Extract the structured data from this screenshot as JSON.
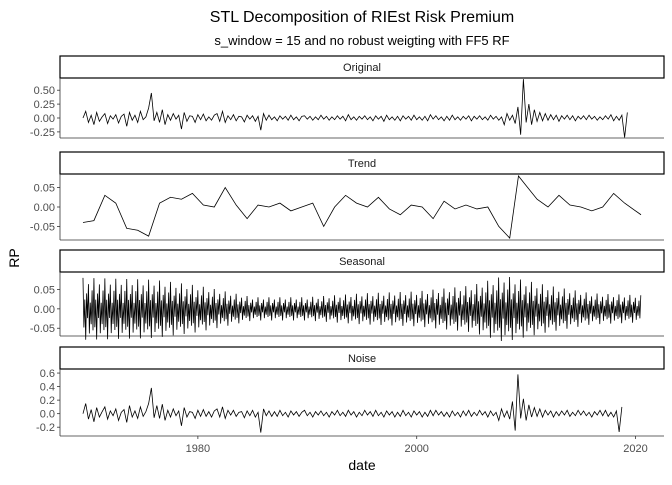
{
  "chart_data": {
    "type": "line",
    "title": "STL Decomposition of RIEst Risk Premium",
    "subtitle": "s_window = 15 and no robust weigting with FF5 RF",
    "xlabel": "date",
    "ylabel": "RP",
    "xlim": [
      1967.4,
      2022.6
    ],
    "x_ticks": [
      1980,
      2000,
      2020
    ],
    "x_tick_labels": [
      "1980",
      "2000",
      "2020"
    ],
    "grid": false,
    "x_start": 1969.5,
    "x_end": 2020.5,
    "panels": [
      {
        "name": "Original",
        "ylim": [
          -0.36,
          0.72
        ],
        "y_ticks": [
          -0.25,
          0.0,
          0.25,
          0.5
        ],
        "y_tick_labels": [
          "-0.25",
          "0.00",
          "0.25",
          "0.50"
        ],
        "sample_interval_years": 0.25,
        "values": [
          0.0,
          0.12,
          -0.08,
          0.05,
          -0.12,
          0.1,
          -0.06,
          0.02,
          0.08,
          -0.1,
          0.04,
          -0.02,
          0.06,
          -0.09,
          0.03,
          0.07,
          -0.15,
          0.1,
          -0.04,
          0.05,
          -0.08,
          0.12,
          -0.03,
          0.02,
          0.18,
          0.45,
          -0.05,
          0.1,
          -0.08,
          0.15,
          -0.12,
          0.06,
          -0.04,
          0.08,
          -0.02,
          0.05,
          -0.2,
          0.1,
          -0.06,
          0.04,
          0.03,
          -0.08,
          0.06,
          -0.03,
          0.07,
          -0.05,
          0.02,
          -0.04,
          0.05,
          0.08,
          -0.06,
          0.12,
          -0.08,
          0.04,
          -0.03,
          0.06,
          -0.05,
          0.03,
          0.02,
          -0.07,
          0.05,
          -0.02,
          0.04,
          -0.06,
          0.03,
          -0.22,
          0.08,
          -0.04,
          0.05,
          -0.03,
          0.02,
          -0.05,
          0.04,
          -0.02,
          0.03,
          -0.04,
          0.05,
          -0.03,
          0.02,
          -0.05,
          0.03,
          0.04,
          -0.02,
          0.03,
          -0.04,
          0.02,
          -0.03,
          0.05,
          -0.02,
          0.03,
          -0.04,
          0.02,
          -0.03,
          0.04,
          -0.02,
          0.03,
          -0.05,
          0.06,
          -0.03,
          0.02,
          -0.04,
          0.03,
          -0.02,
          0.04,
          -0.03,
          0.02,
          -0.05,
          0.04,
          -0.02,
          0.03,
          -0.06,
          0.05,
          -0.03,
          0.02,
          -0.04,
          0.03,
          -0.05,
          0.04,
          -0.02,
          0.03,
          -0.04,
          0.05,
          -0.03,
          0.02,
          -0.04,
          0.03,
          -0.05,
          0.06,
          -0.02,
          0.04,
          -0.03,
          0.02,
          -0.05,
          0.03,
          -0.04,
          0.05,
          -0.03,
          0.02,
          -0.04,
          0.03,
          -0.02,
          0.04,
          -0.05,
          0.03,
          -0.02,
          0.04,
          -0.03,
          0.02,
          -0.04,
          0.05,
          -0.02,
          0.03,
          -0.04,
          0.02,
          -0.12,
          0.08,
          -0.04,
          0.05,
          -0.1,
          0.2,
          -0.3,
          0.7,
          -0.08,
          0.25,
          -0.12,
          0.15,
          -0.06,
          0.1,
          -0.05,
          0.08,
          -0.04,
          0.06,
          -0.03,
          0.05,
          -0.06,
          0.04,
          -0.02,
          0.05,
          -0.03,
          0.04,
          -0.05,
          0.03,
          -0.02,
          0.04,
          -0.03,
          0.05,
          -0.02,
          0.03,
          -0.04,
          0.02,
          -0.03,
          0.04,
          -0.02,
          0.06,
          -0.05,
          0.03,
          -0.04,
          0.05,
          -0.35,
          0.1
        ]
      },
      {
        "name": "Trend",
        "ylim": [
          -0.085,
          0.085
        ],
        "y_ticks": [
          -0.05,
          0.0,
          0.05
        ],
        "y_tick_labels": [
          "-0.05",
          "0.00",
          "0.05"
        ],
        "points": [
          [
            1969.5,
            -0.04
          ],
          [
            1970.5,
            -0.035
          ],
          [
            1971.5,
            0.03
          ],
          [
            1972.5,
            0.01
          ],
          [
            1973.5,
            -0.055
          ],
          [
            1974.5,
            -0.06
          ],
          [
            1975.5,
            -0.075
          ],
          [
            1976.5,
            0.01
          ],
          [
            1977.5,
            0.025
          ],
          [
            1978.5,
            0.02
          ],
          [
            1979.5,
            0.035
          ],
          [
            1980.5,
            0.005
          ],
          [
            1981.5,
            0.0
          ],
          [
            1982.5,
            0.05
          ],
          [
            1983.5,
            0.005
          ],
          [
            1984.5,
            -0.03
          ],
          [
            1985.5,
            0.005
          ],
          [
            1986.5,
            0.0
          ],
          [
            1987.5,
            0.01
          ],
          [
            1988.5,
            -0.01
          ],
          [
            1989.5,
            0.0
          ],
          [
            1990.5,
            0.01
          ],
          [
            1991.5,
            -0.05
          ],
          [
            1992.5,
            0.0
          ],
          [
            1993.5,
            0.03
          ],
          [
            1994.5,
            0.01
          ],
          [
            1995.5,
            0.0
          ],
          [
            1996.5,
            0.025
          ],
          [
            1997.5,
            -0.005
          ],
          [
            1998.5,
            -0.02
          ],
          [
            1999.5,
            0.005
          ],
          [
            2000.5,
            0.0
          ],
          [
            2001.5,
            -0.03
          ],
          [
            2002.5,
            0.015
          ],
          [
            2003.5,
            -0.005
          ],
          [
            2004.5,
            0.005
          ],
          [
            2005.5,
            -0.005
          ],
          [
            2006.5,
            0.0
          ],
          [
            2007.5,
            -0.05
          ],
          [
            2008.5,
            -0.08
          ],
          [
            2009.3,
            0.08
          ],
          [
            2010.0,
            0.055
          ],
          [
            2011.0,
            0.02
          ],
          [
            2012.0,
            0.0
          ],
          [
            2013.0,
            0.03
          ],
          [
            2014.0,
            0.005
          ],
          [
            2015.0,
            0.0
          ],
          [
            2016.0,
            -0.01
          ],
          [
            2017.0,
            0.0
          ],
          [
            2018.0,
            0.035
          ],
          [
            2019.0,
            0.01
          ],
          [
            2020.5,
            -0.02
          ]
        ]
      },
      {
        "name": "Seasonal",
        "ylim": [
          -0.07,
          0.095
        ],
        "y_ticks": [
          -0.05,
          0.0,
          0.05
        ],
        "y_tick_labels": [
          "-0.05",
          "0.00",
          "0.05"
        ],
        "sample_interval_years": 0.0833,
        "amplitude_by_year": [
          [
            1969.5,
            0.08
          ],
          [
            1976.0,
            0.075
          ],
          [
            1980.0,
            0.06
          ],
          [
            1985.0,
            0.03
          ],
          [
            1990.0,
            0.03
          ],
          [
            1995.0,
            0.04
          ],
          [
            2000.0,
            0.045
          ],
          [
            2005.0,
            0.06
          ],
          [
            2008.0,
            0.085
          ],
          [
            2012.0,
            0.06
          ],
          [
            2016.0,
            0.04
          ],
          [
            2020.5,
            0.035
          ]
        ]
      },
      {
        "name": "Noise",
        "ylim": [
          -0.33,
          0.66
        ],
        "y_ticks": [
          -0.2,
          0.0,
          0.2,
          0.4,
          0.6
        ],
        "y_tick_labels": [
          "-0.2",
          "0.0",
          "0.2",
          "0.4",
          "0.6"
        ],
        "sample_interval_years": 0.25,
        "values": [
          0.0,
          0.15,
          -0.08,
          0.06,
          -0.12,
          0.09,
          -0.05,
          0.03,
          0.1,
          -0.08,
          0.04,
          -0.03,
          0.07,
          -0.1,
          0.02,
          0.06,
          -0.13,
          0.12,
          -0.05,
          0.04,
          -0.07,
          0.1,
          -0.04,
          0.03,
          0.15,
          0.38,
          -0.06,
          0.12,
          -0.07,
          0.14,
          -0.1,
          0.05,
          -0.05,
          0.07,
          -0.03,
          0.04,
          -0.18,
          0.09,
          -0.05,
          0.03,
          0.02,
          -0.07,
          0.05,
          -0.04,
          0.06,
          -0.04,
          0.03,
          -0.05,
          0.04,
          0.07,
          -0.05,
          0.1,
          -0.07,
          0.05,
          -0.02,
          0.05,
          -0.04,
          0.02,
          0.03,
          -0.06,
          0.04,
          -0.03,
          0.05,
          -0.05,
          0.02,
          -0.28,
          0.07,
          -0.03,
          0.04,
          -0.04,
          0.03,
          -0.04,
          0.05,
          -0.03,
          0.02,
          -0.05,
          0.04,
          -0.02,
          0.03,
          -0.04,
          0.02,
          0.05,
          -0.03,
          0.02,
          -0.05,
          0.03,
          -0.02,
          0.04,
          -0.03,
          0.02,
          -0.05,
          0.03,
          -0.02,
          0.05,
          -0.03,
          0.02,
          -0.04,
          0.05,
          -0.02,
          0.03,
          -0.05,
          0.02,
          -0.03,
          0.05,
          -0.02,
          0.03,
          -0.04,
          0.05,
          -0.03,
          0.02,
          -0.05,
          0.04,
          -0.02,
          0.03,
          -0.05,
          0.02,
          -0.04,
          0.05,
          -0.03,
          0.02,
          -0.05,
          0.04,
          -0.02,
          0.03,
          -0.05,
          0.02,
          -0.04,
          0.05,
          -0.03,
          0.05,
          -0.02,
          0.03,
          -0.04,
          0.02,
          -0.05,
          0.04,
          -0.03,
          0.02,
          -0.05,
          0.04,
          -0.03,
          0.05,
          -0.04,
          0.02,
          -0.03,
          0.05,
          -0.02,
          0.03,
          -0.05,
          0.04,
          -0.03,
          0.02,
          -0.1,
          0.07,
          -0.05,
          0.04,
          -0.08,
          0.18,
          -0.25,
          0.58,
          -0.07,
          0.22,
          -0.1,
          0.13,
          -0.05,
          0.09,
          -0.04,
          0.07,
          -0.05,
          0.05,
          -0.02,
          0.04,
          -0.05,
          0.03,
          -0.03,
          0.04,
          -0.02,
          0.05,
          -0.04,
          0.02,
          -0.03,
          0.05,
          -0.02,
          0.04,
          -0.03,
          0.02,
          -0.05,
          0.03,
          -0.02,
          0.05,
          -0.03,
          0.05,
          -0.04,
          0.02,
          -0.05,
          0.04,
          -0.27,
          0.1
        ]
      }
    ]
  }
}
